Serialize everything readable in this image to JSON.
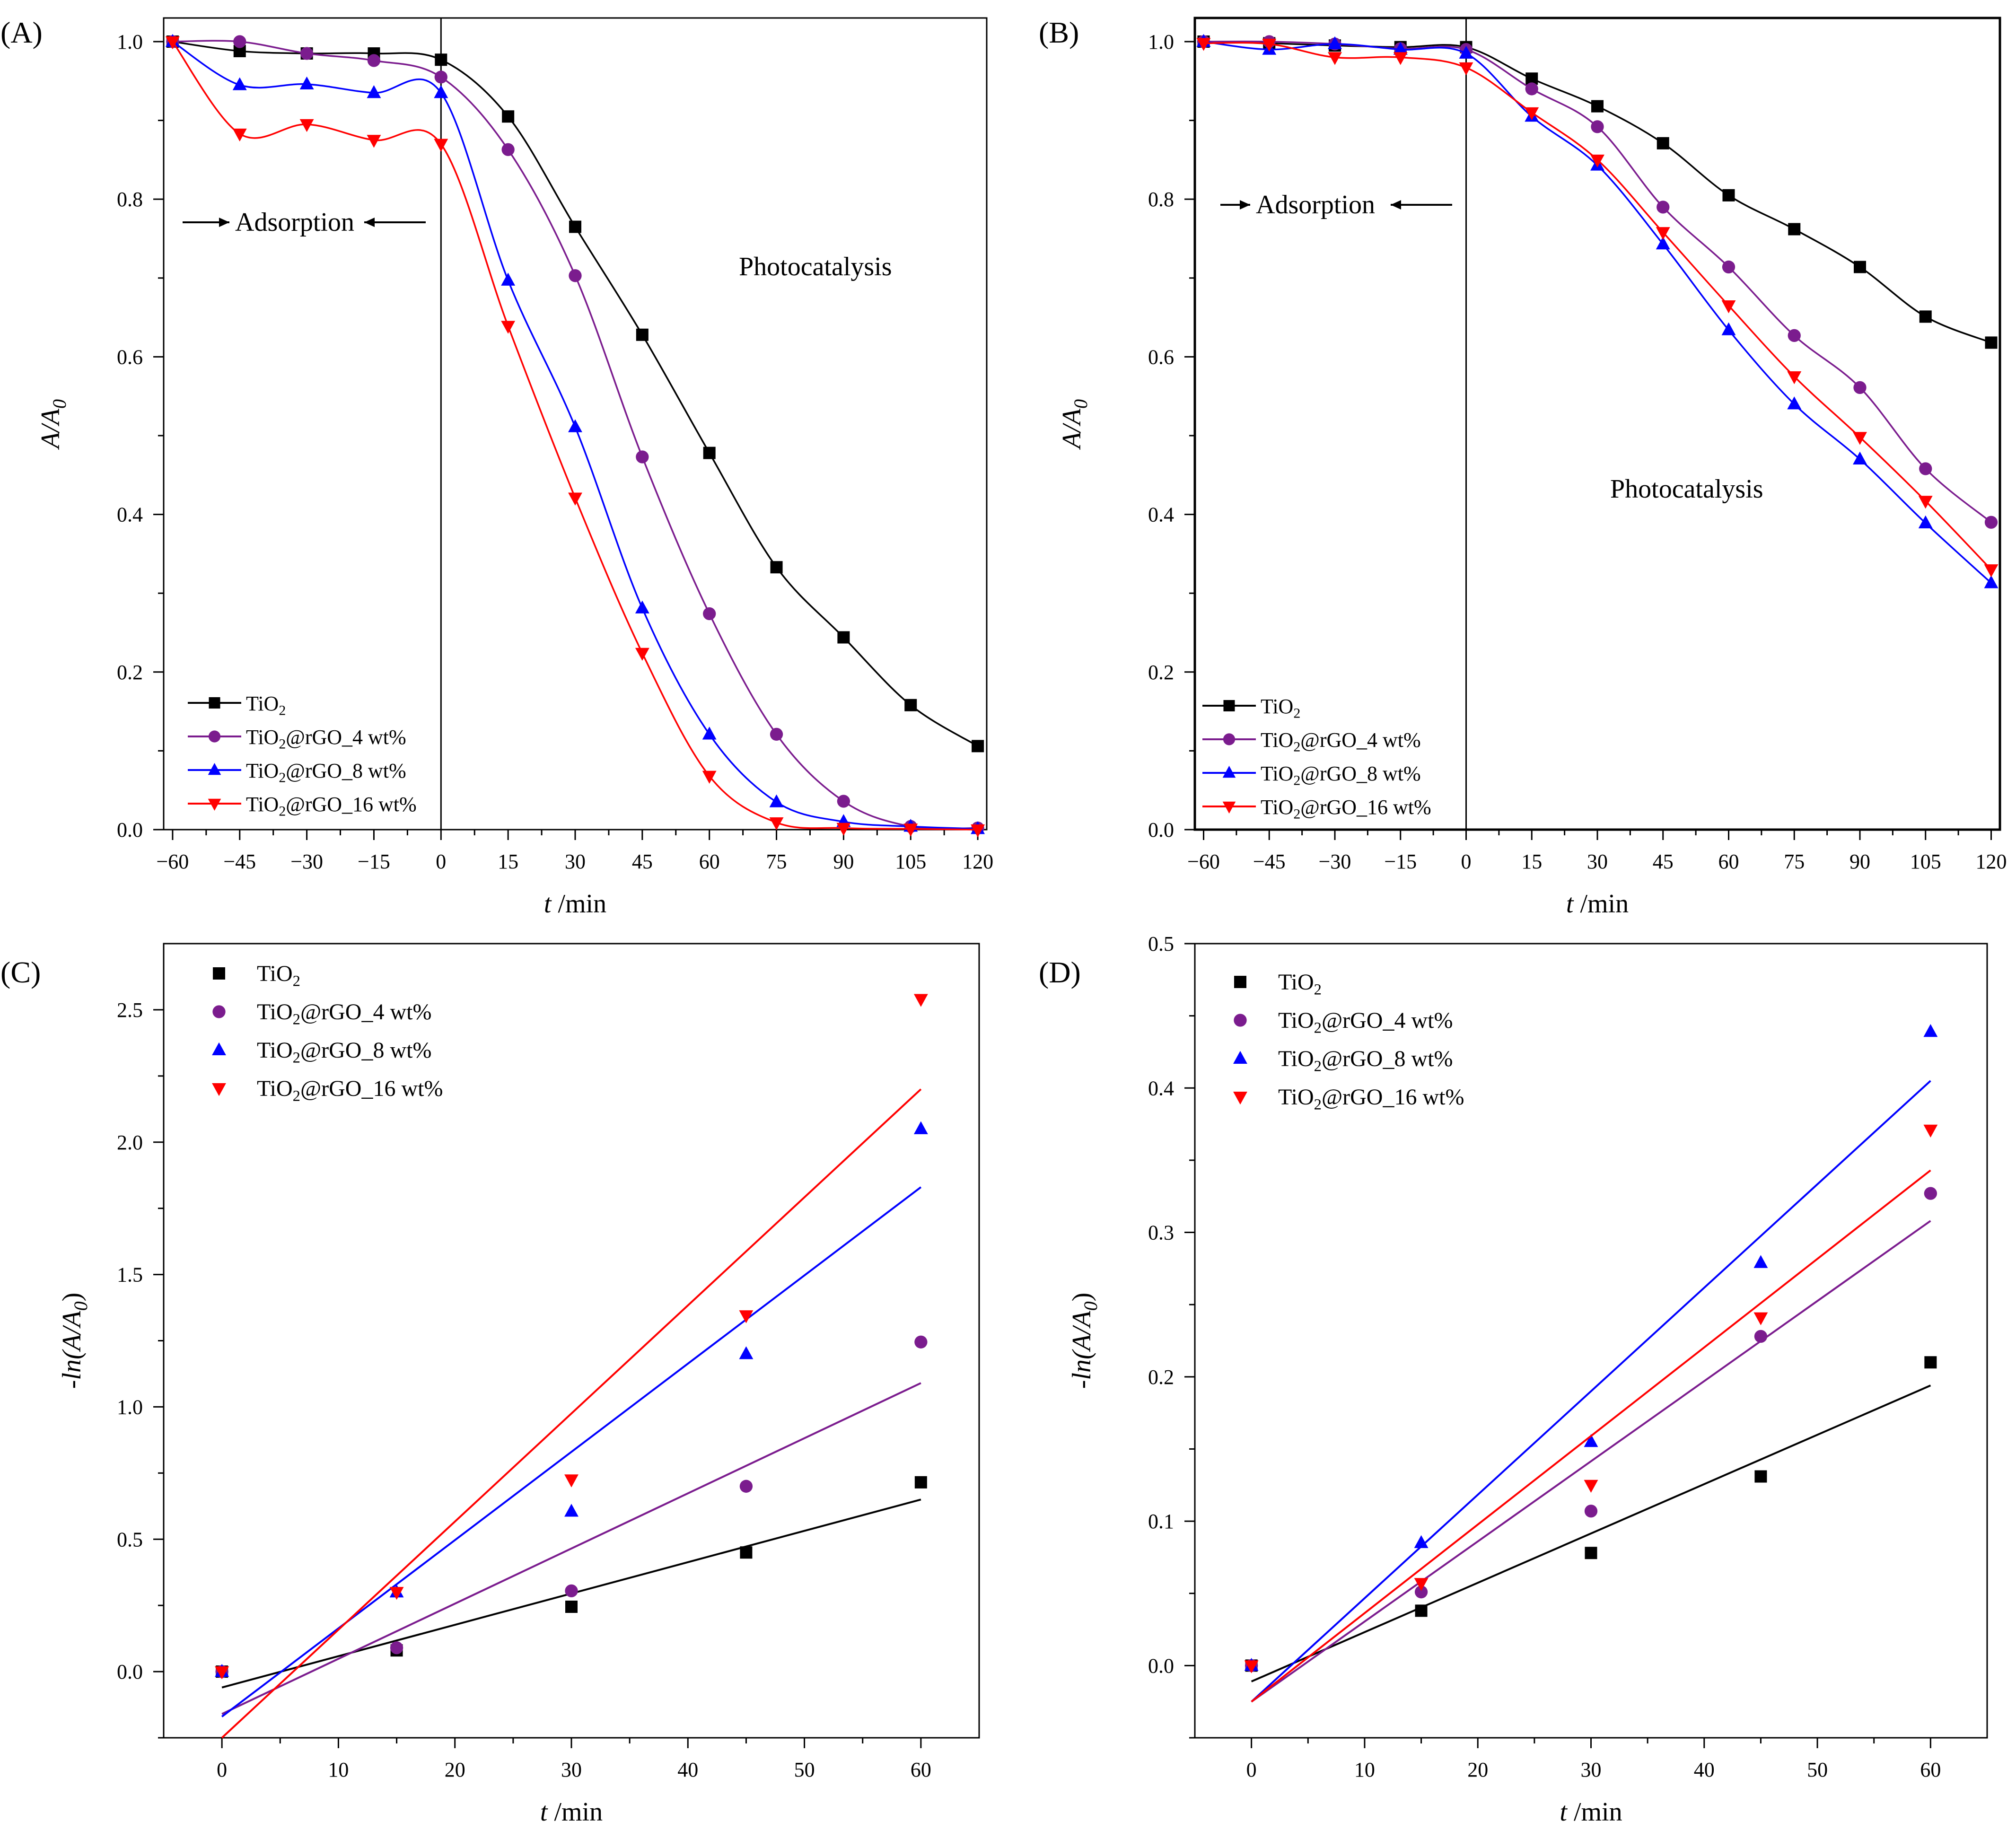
{
  "series_colors": {
    "TiO2": "#000000",
    "4wt": "#7B1C8E",
    "8wt": "#0000FF",
    "16wt": "#FF0000"
  },
  "chart_data": [
    {
      "panel_label": "(A)",
      "type": "line",
      "title": "",
      "xlabel_italic": "t",
      "xlabel_unit": " /min",
      "ylabel_italic": "A/A",
      "ylabel_sub": "0",
      "xlim": [
        -62,
        122
      ],
      "ylim": [
        0,
        1.03
      ],
      "xticks": [
        -60,
        -45,
        -30,
        -15,
        0,
        15,
        30,
        45,
        60,
        75,
        90,
        105,
        120
      ],
      "yticks": [
        0.0,
        0.2,
        0.4,
        0.6,
        0.8,
        1.0
      ],
      "ytick_decimals": 1,
      "minor_xticks": true,
      "minor_yticks": true,
      "vline_x": 0,
      "annotations": {
        "adsorption": "Adsorption",
        "photocatalysis": "Photocatalysis"
      },
      "legend_position": "bottom-left",
      "legend": [
        {
          "key": "TiO2",
          "label_main": "TiO",
          "label_sub": "2",
          "label_tail": "",
          "marker": "square"
        },
        {
          "key": "4wt",
          "label_main": "TiO",
          "label_sub": "2",
          "label_tail": "@rGO_4 wt%",
          "marker": "circle"
        },
        {
          "key": "8wt",
          "label_main": "TiO",
          "label_sub": "2",
          "label_tail": "@rGO_8 wt%",
          "marker": "triangle-up"
        },
        {
          "key": "16wt",
          "label_main": "TiO",
          "label_sub": "2",
          "label_tail": "@rGO_16 wt%",
          "marker": "triangle-down"
        }
      ],
      "x": [
        -60,
        -45,
        -30,
        -15,
        0,
        15,
        30,
        45,
        60,
        75,
        90,
        105,
        120
      ],
      "series": [
        {
          "key": "TiO2",
          "values": [
            1.0,
            0.988,
            0.985,
            0.985,
            0.977,
            0.905,
            0.765,
            0.628,
            0.478,
            0.333,
            0.244,
            0.158,
            0.106
          ]
        },
        {
          "key": "4wt",
          "values": [
            1.0,
            1.0,
            0.985,
            0.976,
            0.955,
            0.863,
            0.703,
            0.473,
            0.274,
            0.121,
            0.036,
            0.004,
            0.002
          ]
        },
        {
          "key": "8wt",
          "values": [
            1.0,
            0.945,
            0.946,
            0.935,
            0.935,
            0.697,
            0.511,
            0.281,
            0.121,
            0.035,
            0.01,
            0.004,
            0.001
          ]
        },
        {
          "key": "16wt",
          "values": [
            1.0,
            0.883,
            0.895,
            0.875,
            0.87,
            0.639,
            0.421,
            0.224,
            0.068,
            0.009,
            0.002,
            0.001,
            0.0
          ]
        }
      ]
    },
    {
      "panel_label": "(B)",
      "type": "line",
      "title": "",
      "xlabel_italic": "t",
      "xlabel_unit": " /min",
      "ylabel_italic": "A/A",
      "ylabel_sub": "0",
      "xlim": [
        -62,
        122
      ],
      "ylim": [
        0,
        1.03
      ],
      "xticks": [
        -60,
        -45,
        -30,
        -15,
        0,
        15,
        30,
        45,
        60,
        75,
        90,
        105,
        120
      ],
      "yticks": [
        0.0,
        0.2,
        0.4,
        0.6,
        0.8,
        1.0
      ],
      "ytick_decimals": 1,
      "minor_xticks": true,
      "minor_yticks": true,
      "vline_x": 0,
      "annotations": {
        "adsorption": "Adsorption",
        "photocatalysis": "Photocatalysis"
      },
      "legend_position": "bottom-left",
      "legend": [
        {
          "key": "TiO2",
          "label_main": "TiO",
          "label_sub": "2",
          "label_tail": "",
          "marker": "square"
        },
        {
          "key": "4wt",
          "label_main": "TiO",
          "label_sub": "2",
          "label_tail": "@rGO_4 wt%",
          "marker": "circle"
        },
        {
          "key": "8wt",
          "label_main": "TiO",
          "label_sub": "2",
          "label_tail": "@rGO_8 wt%",
          "marker": "triangle-up"
        },
        {
          "key": "16wt",
          "label_main": "TiO",
          "label_sub": "2",
          "label_tail": "@rGO_16 wt%",
          "marker": "triangle-down"
        }
      ],
      "x": [
        -60,
        -45,
        -30,
        -15,
        0,
        15,
        30,
        45,
        60,
        75,
        90,
        105,
        120
      ],
      "series": [
        {
          "key": "TiO2",
          "values": [
            1.0,
            0.998,
            0.995,
            0.993,
            0.993,
            0.953,
            0.918,
            0.871,
            0.805,
            0.762,
            0.714,
            0.651,
            0.618
          ]
        },
        {
          "key": "4wt",
          "values": [
            1.0,
            1.0,
            0.997,
            0.991,
            0.99,
            0.94,
            0.892,
            0.79,
            0.714,
            0.627,
            0.561,
            0.458,
            0.39
          ]
        },
        {
          "key": "8wt",
          "values": [
            1.0,
            0.99,
            0.997,
            0.99,
            0.985,
            0.905,
            0.843,
            0.743,
            0.634,
            0.54,
            0.47,
            0.389,
            0.313
          ]
        },
        {
          "key": "16wt",
          "values": [
            0.998,
            0.997,
            0.98,
            0.98,
            0.967,
            0.91,
            0.85,
            0.758,
            0.665,
            0.575,
            0.498,
            0.417,
            0.33
          ]
        }
      ]
    },
    {
      "panel_label": "(C)",
      "type": "scatter",
      "title": "",
      "xlabel_italic": "t",
      "xlabel_unit": " /min",
      "ylabel_prefix": "-",
      "ylabel_italic": "ln(A/A",
      "ylabel_sub": "0",
      "ylabel_suffix": ")",
      "xlim": [
        -5,
        65
      ],
      "ylim": [
        -0.25,
        2.75
      ],
      "xticks": [
        0,
        10,
        20,
        30,
        40,
        50,
        60
      ],
      "yticks": [
        0.0,
        0.5,
        1.0,
        1.5,
        2.0,
        2.5
      ],
      "ytick_decimals": 1,
      "minor_xticks": true,
      "minor_yticks": true,
      "legend_position": "top-left",
      "legend": [
        {
          "key": "TiO2",
          "label_main": "TiO",
          "label_sub": "2",
          "label_tail": "",
          "marker": "square"
        },
        {
          "key": "4wt",
          "label_main": "TiO",
          "label_sub": "2",
          "label_tail": "@rGO_4 wt%",
          "marker": "circle"
        },
        {
          "key": "8wt",
          "label_main": "TiO",
          "label_sub": "2",
          "label_tail": "@rGO_8 wt%",
          "marker": "triangle-up"
        },
        {
          "key": "16wt",
          "label_main": "TiO",
          "label_sub": "2",
          "label_tail": "@rGO_16 wt%",
          "marker": "triangle-down"
        }
      ],
      "x": [
        0,
        15,
        30,
        45,
        60
      ],
      "series": [
        {
          "key": "TiO2",
          "values": [
            0.0,
            0.08,
            0.245,
            0.45,
            0.715
          ],
          "fit": [
            -0.06,
            0.65
          ]
        },
        {
          "key": "4wt",
          "values": [
            0.0,
            0.09,
            0.305,
            0.7,
            1.245
          ],
          "fit": [
            -0.16,
            1.09
          ]
        },
        {
          "key": "8wt",
          "values": [
            0.0,
            0.3,
            0.605,
            1.2,
            2.05
          ],
          "fit": [
            -0.17,
            1.83
          ]
        },
        {
          "key": "16wt",
          "values": [
            0.0,
            0.3,
            0.725,
            1.345,
            2.54
          ],
          "fit": [
            -0.25,
            2.2
          ]
        }
      ]
    },
    {
      "panel_label": "(D)",
      "type": "scatter",
      "title": "",
      "xlabel_italic": "t",
      "xlabel_unit": " /min",
      "ylabel_prefix": "-",
      "ylabel_italic": "ln(A/A",
      "ylabel_sub": "0",
      "ylabel_suffix": ")",
      "xlim": [
        -5,
        65
      ],
      "ylim": [
        -0.05,
        0.5
      ],
      "xticks": [
        0,
        10,
        20,
        30,
        40,
        50,
        60
      ],
      "yticks": [
        0.0,
        0.1,
        0.2,
        0.3,
        0.4,
        0.5
      ],
      "ytick_decimals": 1,
      "minor_xticks": true,
      "minor_yticks": true,
      "legend_position": "top-left",
      "legend": [
        {
          "key": "TiO2",
          "label_main": "TiO",
          "label_sub": "2",
          "label_tail": "",
          "marker": "square"
        },
        {
          "key": "4wt",
          "label_main": "TiO",
          "label_sub": "2",
          "label_tail": "@rGO_4 wt%",
          "marker": "circle"
        },
        {
          "key": "8wt",
          "label_main": "TiO",
          "label_sub": "2",
          "label_tail": "@rGO_8 wt%",
          "marker": "triangle-up"
        },
        {
          "key": "16wt",
          "label_main": "TiO",
          "label_sub": "2",
          "label_tail": "@rGO_16 wt%",
          "marker": "triangle-down"
        }
      ],
      "x": [
        0,
        15,
        30,
        45,
        60
      ],
      "series": [
        {
          "key": "TiO2",
          "values": [
            0.0,
            0.038,
            0.078,
            0.131,
            0.21
          ],
          "fit": [
            -0.011,
            0.194
          ]
        },
        {
          "key": "4wt",
          "values": [
            0.0,
            0.051,
            0.107,
            0.228,
            0.327
          ],
          "fit": [
            -0.025,
            0.308
          ]
        },
        {
          "key": "8wt",
          "values": [
            0.0,
            0.085,
            0.155,
            0.279,
            0.439
          ],
          "fit": [
            -0.025,
            0.405
          ]
        },
        {
          "key": "16wt",
          "values": [
            0.0,
            0.057,
            0.125,
            0.241,
            0.371
          ],
          "fit": [
            -0.025,
            0.343
          ]
        }
      ]
    }
  ]
}
